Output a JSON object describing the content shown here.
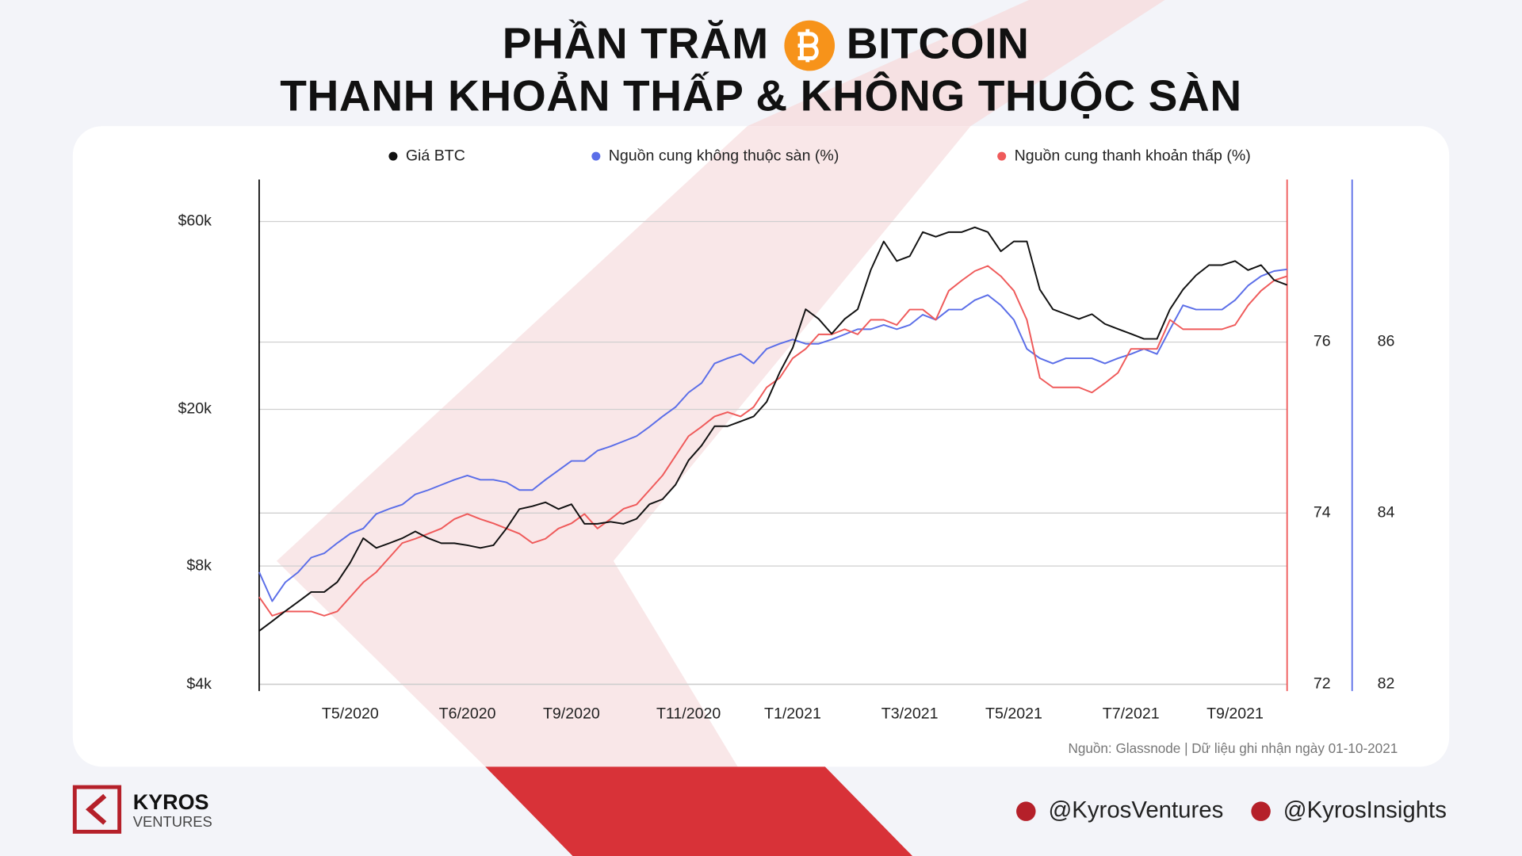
{
  "header": {
    "title_line1_start": "PHẦN TRĂM",
    "title_line1_end": "BITCOIN",
    "title_line2": "THANH KHOẢN THẤP & KHÔNG THUỘC SÀN"
  },
  "chart_data": {
    "type": "line",
    "categories": [
      null,
      null,
      null,
      null,
      null,
      null,
      null,
      "T5/2020",
      null,
      null,
      null,
      null,
      null,
      null,
      null,
      null,
      "T6/2020",
      null,
      null,
      null,
      null,
      null,
      null,
      null,
      "T9/2020",
      null,
      null,
      null,
      null,
      null,
      null,
      null,
      null,
      "T11/2020",
      null,
      null,
      null,
      null,
      null,
      null,
      null,
      "T1/2021",
      null,
      null,
      null,
      null,
      null,
      null,
      null,
      null,
      "T3/2021",
      null,
      null,
      null,
      null,
      null,
      null,
      null,
      "T5/2021",
      null,
      null,
      null,
      null,
      null,
      null,
      null,
      null,
      "T7/2021",
      null,
      null,
      null,
      null,
      null,
      null,
      null,
      "T9/2021",
      null,
      null,
      null,
      null
    ],
    "series": [
      {
        "name": "Giá BTC",
        "color": "#111111",
        "axis": "y",
        "values": [
          5470,
          5790,
          6140,
          6490,
          6870,
          6870,
          7280,
          8160,
          9410,
          8890,
          9140,
          9410,
          9790,
          9410,
          9140,
          9140,
          9030,
          8890,
          9030,
          9960,
          11160,
          11350,
          11610,
          11160,
          11480,
          10240,
          10240,
          10360,
          10240,
          10540,
          11480,
          11820,
          12870,
          14840,
          16180,
          18120,
          18120,
          18640,
          19180,
          20890,
          24810,
          28640,
          35920,
          33930,
          31110,
          33930,
          35920,
          45160,
          53400,
          47620,
          49000,
          56400,
          54900,
          56400,
          56400,
          58000,
          56400,
          50400,
          53400,
          53400,
          40300,
          35920,
          34900,
          33930,
          34900,
          32950,
          32000,
          31110,
          30200,
          30200,
          35920,
          40300,
          43800,
          46500,
          46500,
          47620,
          45160,
          46500,
          42600,
          41400
        ]
      },
      {
        "name": "Nguồn cung không thuộc sàn (%)",
        "color": "#5b6ee8",
        "axis": "y3",
        "values": [
          83.31,
          82.97,
          83.19,
          83.31,
          83.48,
          83.53,
          83.65,
          83.76,
          83.82,
          83.99,
          84.05,
          84.1,
          84.22,
          84.27,
          84.33,
          84.39,
          84.44,
          84.39,
          84.39,
          84.36,
          84.27,
          84.27,
          84.39,
          84.5,
          84.61,
          84.61,
          84.73,
          84.78,
          84.84,
          84.9,
          85.01,
          85.13,
          85.24,
          85.41,
          85.52,
          85.75,
          85.81,
          85.86,
          85.75,
          85.92,
          85.98,
          86.03,
          85.98,
          85.98,
          86.03,
          86.09,
          86.15,
          86.15,
          86.2,
          86.15,
          86.2,
          86.32,
          86.26,
          86.38,
          86.38,
          86.49,
          86.55,
          86.43,
          86.26,
          85.92,
          85.81,
          85.75,
          85.81,
          85.81,
          85.81,
          85.75,
          85.81,
          85.86,
          85.92,
          85.86,
          86.15,
          86.43,
          86.38,
          86.38,
          86.38,
          86.49,
          86.66,
          86.77,
          86.83,
          86.85
        ]
      },
      {
        "name": "Nguồn cung thanh khoản thấp (%)",
        "color": "#ef5a5a",
        "axis": "y2",
        "values": [
          73.02,
          72.8,
          72.85,
          72.85,
          72.85,
          72.8,
          72.85,
          73.02,
          73.19,
          73.31,
          73.48,
          73.65,
          73.7,
          73.76,
          73.82,
          73.93,
          73.99,
          73.93,
          73.88,
          73.82,
          73.76,
          73.65,
          73.7,
          73.82,
          73.88,
          73.99,
          73.82,
          73.93,
          74.05,
          74.1,
          74.27,
          74.44,
          74.67,
          74.9,
          75.01,
          75.13,
          75.18,
          75.13,
          75.24,
          75.47,
          75.58,
          75.81,
          75.92,
          76.09,
          76.09,
          76.15,
          76.09,
          76.26,
          76.26,
          76.2,
          76.38,
          76.38,
          76.26,
          76.6,
          76.72,
          76.83,
          76.89,
          76.77,
          76.6,
          76.26,
          75.58,
          75.47,
          75.47,
          75.47,
          75.41,
          75.52,
          75.64,
          75.92,
          75.92,
          75.92,
          76.26,
          76.15,
          76.15,
          76.15,
          76.15,
          76.2,
          76.43,
          76.6,
          76.72,
          76.77
        ]
      }
    ],
    "ylim": [
      3850,
      76700
    ],
    "ylog": true,
    "yticks": [
      {
        "value": 4000,
        "label": "$4k"
      },
      {
        "value": 8000,
        "label": "$8k"
      },
      {
        "value": 20000,
        "label": "$20k"
      },
      {
        "value": 60000,
        "label": "$60k"
      }
    ],
    "y2lim": [
      71.92,
      77.9
    ],
    "y2ticks": [
      72,
      74,
      76
    ],
    "y3lim": [
      81.92,
      87.9
    ],
    "y3ticks": [
      82,
      84,
      86
    ],
    "grid": true,
    "source": "Nguồn: Glassnode | Dữ liệu ghi nhận ngày 01-10-2021"
  },
  "footer": {
    "brand": "KYROS",
    "brand_sub": "VENTURES",
    "twitter": "@KyrosVentures",
    "telegram": "@KyrosInsights"
  }
}
